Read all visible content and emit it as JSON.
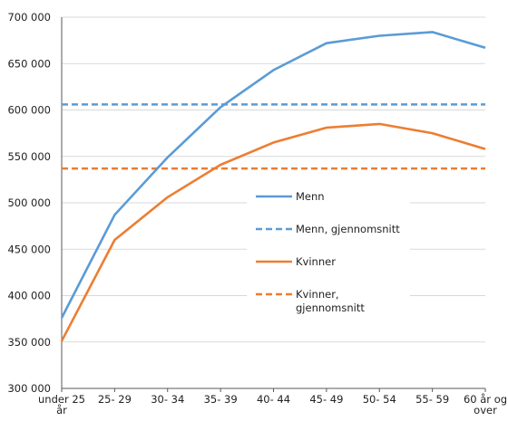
{
  "chart_data": {
    "type": "line",
    "categories": [
      [
        "under 25",
        "år"
      ],
      [
        "25- 29"
      ],
      [
        "30- 34"
      ],
      [
        "35- 39"
      ],
      [
        "40- 44"
      ],
      [
        "45- 49"
      ],
      [
        "50- 54"
      ],
      [
        "55- 59"
      ],
      [
        "60 år og",
        "over"
      ]
    ],
    "ylim": [
      300000,
      700000
    ],
    "yticks": [
      300000,
      350000,
      400000,
      450000,
      500000,
      550000,
      600000,
      650000,
      700000
    ],
    "ytick_labels": [
      "300 000",
      "350 000",
      "400 000",
      "450 000",
      "500 000",
      "550 000",
      "600 000",
      "650 000",
      "700 000"
    ],
    "grid": true,
    "legend_position": "center-right",
    "series": [
      {
        "name": "Menn",
        "style": "solid",
        "color": "#5b9bd5",
        "values": [
          376000,
          487000,
          549000,
          603000,
          643000,
          672000,
          680000,
          684000,
          667000
        ]
      },
      {
        "name": "Menn, gjennomsnitt",
        "style": "dashed",
        "color": "#5b9bd5",
        "values": [
          606000,
          606000,
          606000,
          606000,
          606000,
          606000,
          606000,
          606000,
          606000
        ]
      },
      {
        "name": "Kvinner",
        "style": "solid",
        "color": "#ed7d31",
        "values": [
          351000,
          460000,
          506000,
          541000,
          565000,
          581000,
          585000,
          575000,
          558000
        ]
      },
      {
        "name": "Kvinner, gjennomsnitt",
        "style": "dashed",
        "color": "#ed7d31",
        "values": [
          537000,
          537000,
          537000,
          537000,
          537000,
          537000,
          537000,
          537000,
          537000
        ]
      }
    ],
    "legend": [
      {
        "lines": [
          "Menn"
        ],
        "series": 0
      },
      {
        "lines": [
          "Menn, gjennomsnitt"
        ],
        "series": 1
      },
      {
        "lines": [
          "Kvinner"
        ],
        "series": 2
      },
      {
        "lines": [
          "Kvinner,",
          "gjennomsnitt"
        ],
        "series": 3
      }
    ]
  }
}
